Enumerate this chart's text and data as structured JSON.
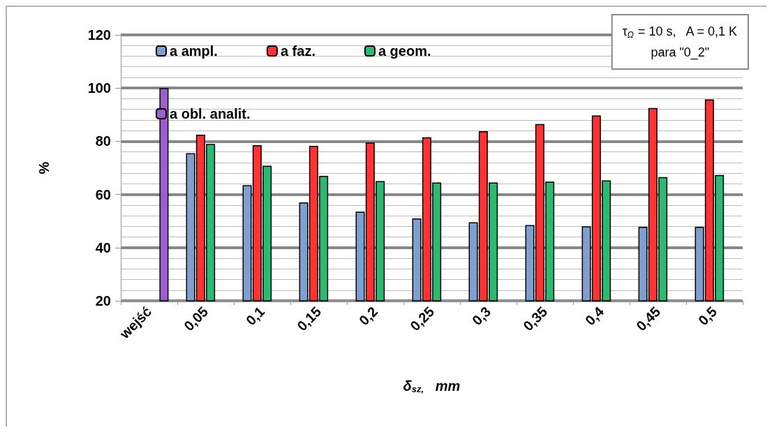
{
  "chart_data": {
    "type": "bar",
    "xlabel": "δ$_{sz,}$   mm",
    "ylabel": "%",
    "categories": [
      "wejść",
      "0,05",
      "0,1",
      "0,15",
      "0,2",
      "0,25",
      "0,3",
      "0,35",
      "0,4",
      "0,45",
      "0,5"
    ],
    "series": [
      {
        "name": "a ampl.",
        "color": "#7f9fd0",
        "values": [
          20,
          75.5,
          63.5,
          57,
          53.5,
          51,
          49.5,
          48.5,
          48,
          47.8,
          47.8
        ]
      },
      {
        "name": "a faz.",
        "color": "#ff3333",
        "values": [
          20,
          82.5,
          78.5,
          78.3,
          79.5,
          81.5,
          83.8,
          86.5,
          89.7,
          92.5,
          95.7
        ]
      },
      {
        "name": "a geom.",
        "color": "#2eb872",
        "values": [
          20,
          79,
          70.8,
          67,
          65,
          64.5,
          64.5,
          64.8,
          65.3,
          66.5,
          67.3
        ]
      },
      {
        "name": "a obl. analit.",
        "color": "#9b5fd0",
        "values": [
          100,
          null,
          null,
          null,
          null,
          null,
          null,
          null,
          null,
          null,
          null
        ]
      }
    ],
    "ylim": [
      20,
      120
    ],
    "yticks": [
      20,
      40,
      60,
      80,
      100,
      120
    ],
    "grid": true,
    "legend": "top left",
    "annotations": [
      "τ$_{Ω}$ = 10 s,   A = 0,1 K\npara \"0_2\""
    ]
  }
}
